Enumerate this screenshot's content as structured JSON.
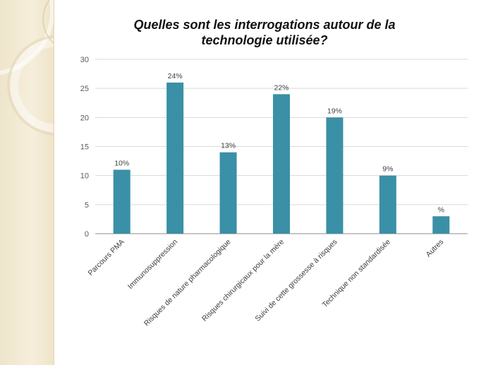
{
  "chart_data": {
    "type": "bar",
    "title": "Quelles sont les interrogations autour de la technologie utilisée?",
    "categories": [
      "Parcours PMA",
      "Immunosuppression",
      "Risques de nature pharmacologique",
      "Risques chirurgicaux pour la mère",
      "Suivi de cette grossesse à risques",
      "Technique non standardisée",
      "Autres"
    ],
    "values": [
      11,
      26,
      14,
      24,
      20,
      10,
      3
    ],
    "data_labels": [
      "10%",
      "24%",
      "13%",
      "22%",
      "19%",
      "9%",
      "%"
    ],
    "ylim": [
      0,
      30
    ],
    "yticks": [
      "0",
      "5",
      "10",
      "15",
      "20",
      "25",
      "30"
    ],
    "xlabel": "",
    "ylabel": "",
    "grid": true,
    "bar_color": "#3a90a6"
  }
}
